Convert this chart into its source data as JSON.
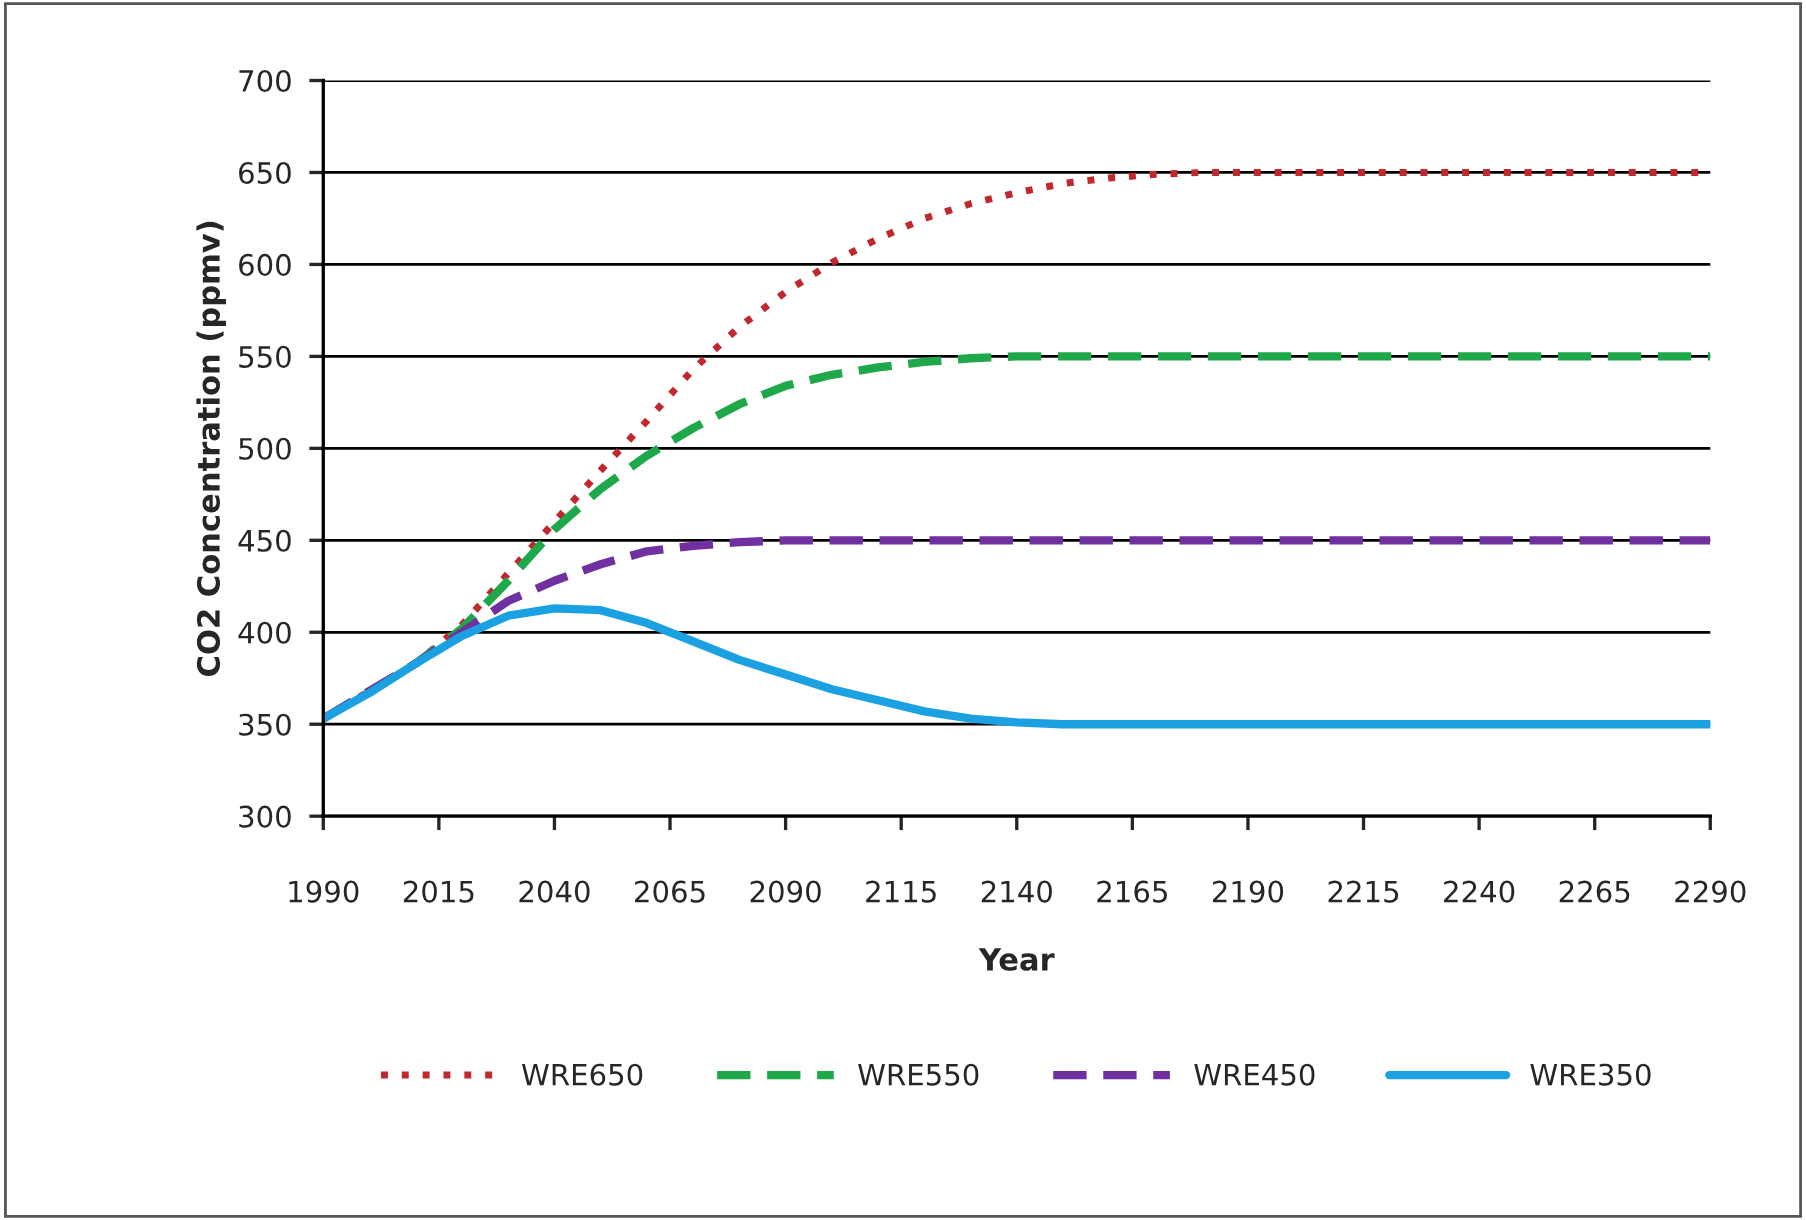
{
  "chart_data": {
    "type": "line",
    "xlabel": "Year",
    "ylabel": "CO2 Concentration (ppmv)",
    "x": [
      1990,
      2000,
      2010,
      2020,
      2030,
      2040,
      2050,
      2060,
      2070,
      2080,
      2090,
      2100,
      2110,
      2120,
      2130,
      2140,
      2150,
      2160,
      2170,
      2180,
      2190,
      2200,
      2210,
      2220,
      2230,
      2240,
      2250,
      2260,
      2270,
      2280,
      2290
    ],
    "series": [
      {
        "name": "WRE650",
        "color": "#c0282d",
        "line_style": "dotted",
        "values": [
          353,
          368,
          383,
          404,
          432,
          460,
          488,
          515,
          543,
          566,
          585,
          601,
          614,
          625,
          633,
          639,
          644,
          647,
          649,
          650,
          650,
          650,
          650,
          650,
          650,
          650,
          650,
          650,
          650,
          650,
          650
        ]
      },
      {
        "name": "WRE550",
        "color": "#1ea84a",
        "line_style": "dashed",
        "values": [
          353,
          368,
          383,
          402,
          428,
          456,
          478,
          496,
          511,
          524,
          534,
          540,
          544,
          547,
          549,
          550,
          550,
          550,
          550,
          550,
          550,
          550,
          550,
          550,
          550,
          550,
          550,
          550,
          550,
          550,
          550
        ]
      },
      {
        "name": "WRE450",
        "color": "#7030a0",
        "line_style": "dashed",
        "values": [
          353,
          368,
          383,
          400,
          417,
          428,
          437,
          444,
          447,
          449,
          450,
          450,
          450,
          450,
          450,
          450,
          450,
          450,
          450,
          450,
          450,
          450,
          450,
          450,
          450,
          450,
          450,
          450,
          450,
          450,
          450
        ]
      },
      {
        "name": "WRE350",
        "color": "#1ba1e2",
        "line_style": "solid",
        "values": [
          353,
          367,
          383,
          398,
          409,
          413,
          412,
          405,
          395,
          385,
          377,
          369,
          363,
          357,
          353,
          351,
          350,
          350,
          350,
          350,
          350,
          350,
          350,
          350,
          350,
          350,
          350,
          350,
          350,
          350,
          350
        ]
      }
    ],
    "xlim": [
      1990,
      2290
    ],
    "xticks": [
      1990,
      2015,
      2040,
      2065,
      2090,
      2115,
      2140,
      2165,
      2190,
      2215,
      2240,
      2265,
      2290
    ],
    "ylim": [
      300,
      700
    ],
    "yticks": [
      300,
      350,
      400,
      450,
      500,
      550,
      600,
      650,
      700
    ],
    "grid": "y",
    "legend": "bottom",
    "marker": "none"
  }
}
